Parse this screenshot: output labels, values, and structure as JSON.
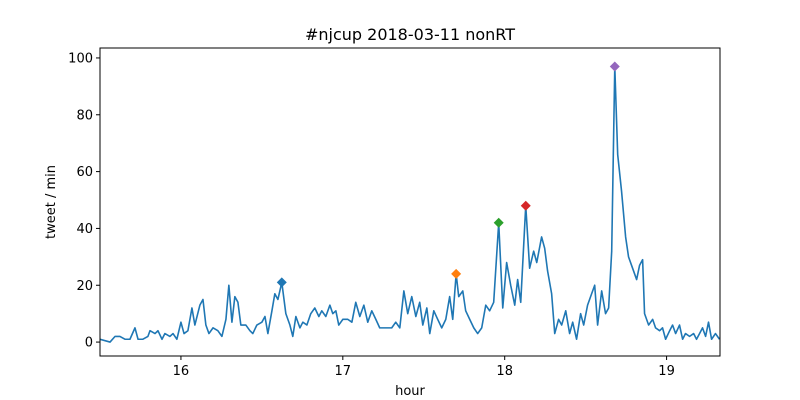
{
  "chart_data": {
    "type": "line",
    "title": "#njcup 2018-03-11 nonRT",
    "xlabel": "hour",
    "ylabel": "tweet / min",
    "xlim": [
      15.5,
      19.33
    ],
    "ylim": [
      -4.9,
      103.5
    ],
    "xticks": [
      16,
      17,
      18,
      19
    ],
    "yticks": [
      0,
      20,
      40,
      60,
      80,
      100
    ],
    "series": [
      {
        "color": "#1f77b4",
        "x": [
          15.5,
          15.562,
          15.593,
          15.623,
          15.654,
          15.685,
          15.716,
          15.735,
          15.765,
          15.796,
          15.809,
          15.84,
          15.858,
          15.883,
          15.901,
          15.932,
          15.951,
          15.975,
          16.0,
          16.019,
          16.043,
          16.068,
          16.086,
          16.117,
          16.136,
          16.154,
          16.173,
          16.198,
          16.228,
          16.253,
          16.278,
          16.296,
          16.315,
          16.333,
          16.352,
          16.37,
          16.401,
          16.426,
          16.444,
          16.469,
          16.5,
          16.519,
          16.537,
          16.562,
          16.58,
          16.599,
          16.623,
          16.648,
          16.673,
          16.691,
          16.71,
          16.735,
          16.753,
          16.778,
          16.802,
          16.827,
          16.852,
          16.87,
          16.895,
          16.92,
          16.938,
          16.957,
          16.975,
          17.0,
          17.031,
          17.056,
          17.08,
          17.105,
          17.13,
          17.154,
          17.179,
          17.204,
          17.228,
          17.253,
          17.278,
          17.302,
          17.327,
          17.352,
          17.377,
          17.401,
          17.426,
          17.451,
          17.475,
          17.494,
          17.519,
          17.537,
          17.562,
          17.586,
          17.611,
          17.636,
          17.66,
          17.679,
          17.7,
          17.716,
          17.741,
          17.759,
          17.784,
          17.809,
          17.833,
          17.858,
          17.883,
          17.907,
          17.932,
          17.963,
          17.988,
          18.012,
          18.037,
          18.062,
          18.08,
          18.099,
          18.13,
          18.154,
          18.179,
          18.198,
          18.228,
          18.247,
          18.265,
          18.29,
          18.309,
          18.333,
          18.352,
          18.377,
          18.401,
          18.42,
          18.444,
          18.469,
          18.488,
          18.512,
          18.537,
          18.556,
          18.574,
          18.599,
          18.623,
          18.642,
          18.661,
          18.68,
          18.698,
          18.722,
          18.747,
          18.765,
          18.79,
          18.815,
          18.833,
          18.852,
          18.864,
          18.889,
          18.914,
          18.932,
          18.957,
          18.975,
          18.994,
          19.019,
          19.037,
          19.056,
          19.08,
          19.099,
          19.117,
          19.142,
          19.167,
          19.185,
          19.204,
          19.222,
          19.241,
          19.259,
          19.278,
          19.302,
          19.327
        ],
        "values": [
          1,
          0,
          2,
          2,
          1,
          1,
          5,
          1,
          1,
          2,
          4,
          3,
          4,
          1,
          3,
          2,
          3,
          1,
          7,
          3,
          4,
          12,
          6,
          13,
          15,
          6,
          3,
          5,
          4,
          2,
          8,
          20,
          7,
          16,
          14,
          6,
          6,
          4,
          3,
          6,
          7,
          9,
          3,
          11,
          17,
          15,
          21,
          10,
          6,
          2,
          9,
          5,
          7,
          6,
          10,
          12,
          9,
          11,
          9,
          13,
          10,
          11,
          6,
          8,
          8,
          7,
          14,
          9,
          13,
          7,
          11,
          8,
          5,
          5,
          5,
          5,
          7,
          5,
          18,
          10,
          16,
          9,
          14,
          6,
          12,
          3,
          11,
          8,
          5,
          8,
          16,
          8,
          24,
          16,
          18,
          11,
          8,
          5,
          3,
          5,
          13,
          11,
          14,
          42,
          12,
          28,
          20,
          13,
          22,
          14,
          48,
          26,
          32,
          28,
          37,
          33,
          25,
          17,
          3,
          8,
          6,
          11,
          3,
          7,
          1,
          10,
          6,
          13,
          17,
          20,
          6,
          18,
          10,
          12,
          32,
          97,
          66,
          53,
          37,
          30,
          26,
          22,
          27,
          29,
          10,
          6,
          8,
          5,
          4,
          5,
          1,
          4,
          6,
          3,
          6,
          1,
          3,
          2,
          3,
          1,
          3,
          5,
          2,
          7,
          1,
          3,
          1
        ]
      }
    ],
    "markers": {
      "x": [
        16.623,
        17.7,
        17.963,
        18.13,
        18.68
      ],
      "values": [
        21,
        24,
        42,
        48,
        97
      ],
      "colors": [
        "#1f77b4",
        "#ff7f0e",
        "#2ca02c",
        "#d62728",
        "#9467bd"
      ]
    }
  }
}
